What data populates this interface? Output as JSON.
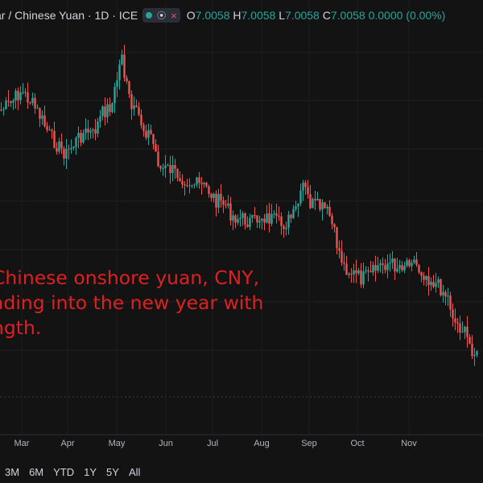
{
  "header": {
    "symbol_title": "ar / Chinese Yuan · 1D · ICE",
    "ohlc": {
      "open_label": "O",
      "open": "7.0058",
      "high_label": "H",
      "high": "7.0058",
      "low_label": "L",
      "low": "7.0058",
      "close_label": "C",
      "close": "7.0058",
      "change": "0.0000 (0.00%)"
    }
  },
  "annotation": {
    "lines": [
      "Chinese onshore yuan, CNY,",
      "ading into the new year with",
      "ngth."
    ]
  },
  "period_buttons": [
    "3M",
    "6M",
    "YTD",
    "1Y",
    "5Y",
    "All"
  ],
  "colors": {
    "up": "#26a69a",
    "down": "#ef5350",
    "background": "#131313",
    "annotation": "#e02020"
  },
  "chart_data": {
    "type": "candlestick",
    "xlabel": "",
    "ylabel": "",
    "x_tick_labels": [
      "Mar",
      "Apr",
      "May",
      "Jun",
      "Jul",
      "Aug",
      "Sep",
      "Oct",
      "Nov"
    ],
    "grid": true,
    "y_scale_labels_visible": false,
    "close_path": [
      [
        0,
        0.52
      ],
      [
        4,
        0.5
      ],
      [
        8,
        0.46
      ],
      [
        12,
        0.49
      ],
      [
        16,
        0.54
      ],
      [
        20,
        0.6
      ],
      [
        24,
        0.64
      ],
      [
        27,
        0.66
      ],
      [
        30,
        0.63
      ],
      [
        33,
        0.6
      ],
      [
        36,
        0.59
      ],
      [
        38,
        0.6
      ],
      [
        42,
        0.53
      ],
      [
        46,
        0.5
      ],
      [
        48,
        0.42
      ],
      [
        49,
        0.38
      ],
      [
        50,
        0.33
      ],
      [
        51,
        0.41
      ],
      [
        54,
        0.52
      ],
      [
        57,
        0.54
      ],
      [
        59,
        0.58
      ],
      [
        62,
        0.6
      ],
      [
        63,
        0.63
      ],
      [
        66,
        0.71
      ],
      [
        70,
        0.71
      ],
      [
        74,
        0.73
      ],
      [
        78,
        0.75
      ],
      [
        81,
        0.76
      ],
      [
        85,
        0.77
      ],
      [
        89,
        0.81
      ],
      [
        92,
        0.82
      ],
      [
        96,
        0.86
      ],
      [
        100,
        0.87
      ],
      [
        104,
        0.88
      ],
      [
        108,
        0.86
      ],
      [
        112,
        0.87
      ],
      [
        116,
        0.89
      ],
      [
        118,
        0.88
      ],
      [
        121,
        0.86
      ],
      [
        124,
        0.8
      ],
      [
        125,
        0.76
      ],
      [
        128,
        0.82
      ],
      [
        131,
        0.83
      ],
      [
        134,
        0.84
      ],
      [
        136,
        0.86
      ],
      [
        139,
        0.95
      ],
      [
        142,
        1.02
      ],
      [
        145,
        1.04
      ],
      [
        149,
        1.06
      ],
      [
        153,
        1.05
      ],
      [
        156,
        1.02
      ],
      [
        160,
        1.01
      ],
      [
        164,
        1.02
      ],
      [
        167,
        1.01
      ],
      [
        170,
        0.99
      ],
      [
        173,
        1.03
      ],
      [
        176,
        1.05
      ],
      [
        179,
        1.07
      ],
      [
        182,
        1.09
      ],
      [
        185,
        1.12
      ],
      [
        188,
        1.2
      ],
      [
        191,
        1.22
      ],
      [
        194,
        1.27
      ],
      [
        197,
        1.31
      ]
    ],
    "last_close": 7.0058
  }
}
